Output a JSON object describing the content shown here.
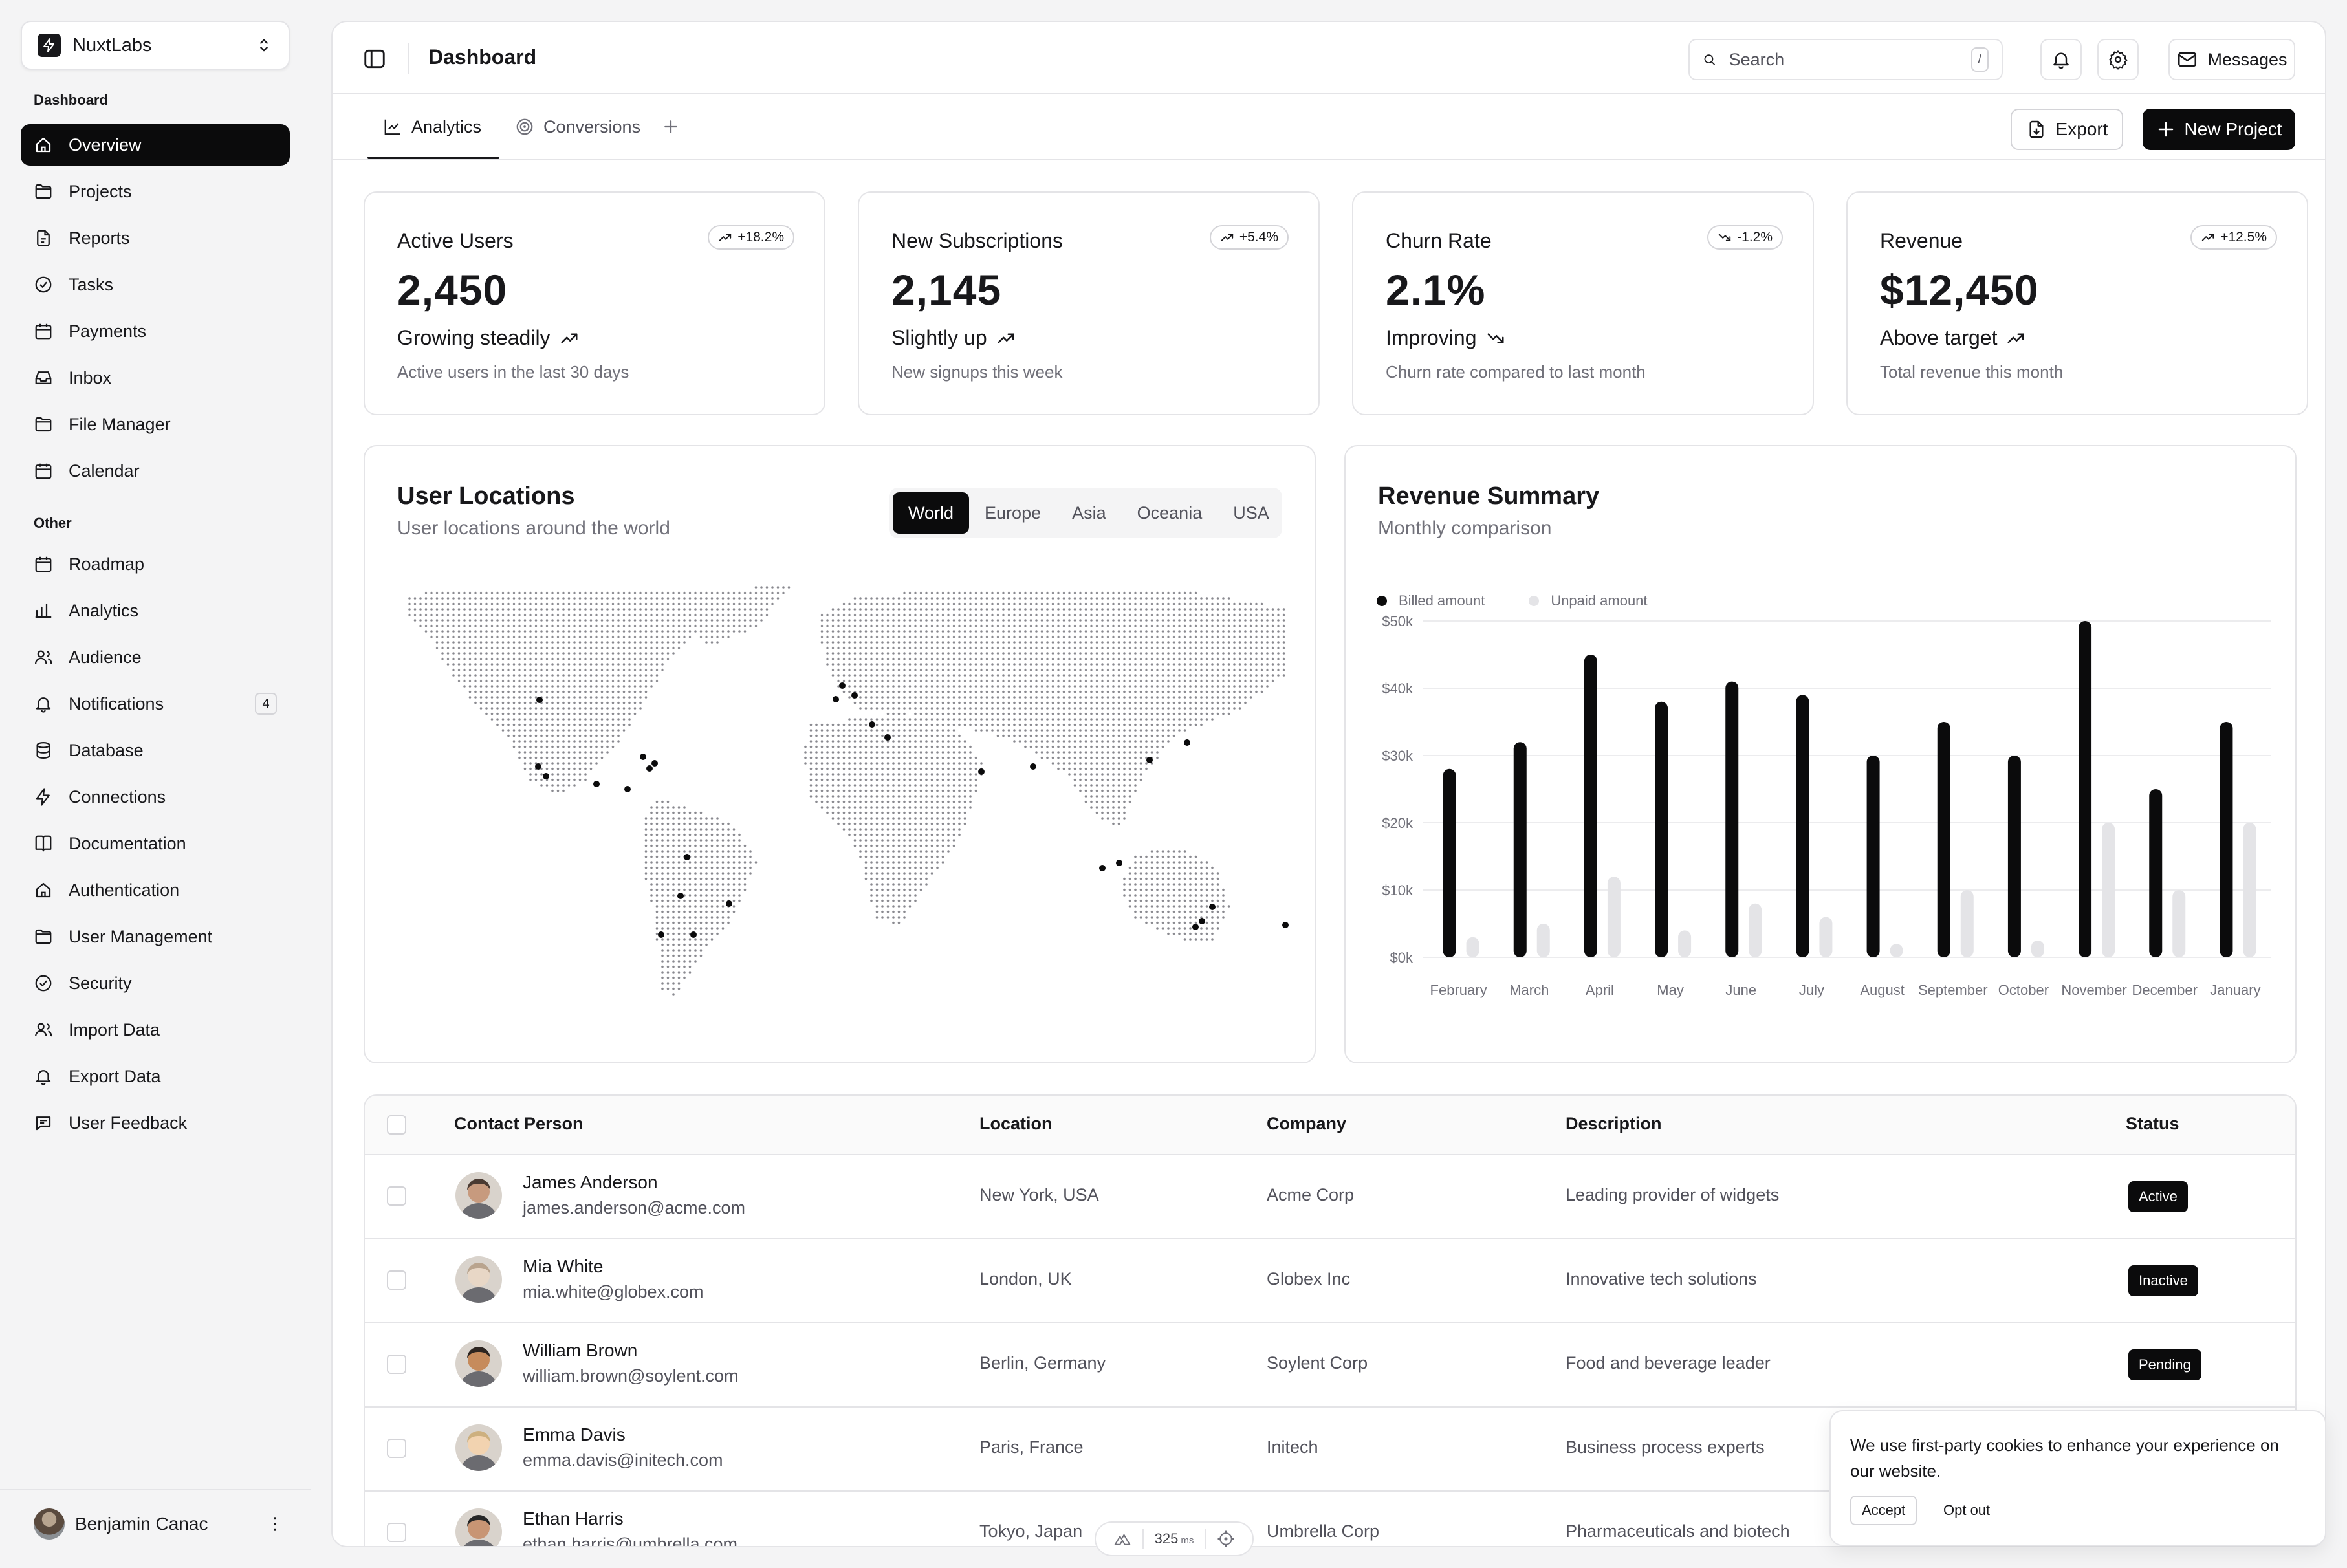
{
  "team": {
    "name": "NuxtLabs"
  },
  "nav": {
    "section_main": "Dashboard",
    "main_items": [
      {
        "label": "Overview",
        "icon": "home-icon",
        "active": true
      },
      {
        "label": "Projects",
        "icon": "folder-icon"
      },
      {
        "label": "Reports",
        "icon": "file-icon"
      },
      {
        "label": "Tasks",
        "icon": "check-circle-icon"
      },
      {
        "label": "Payments",
        "icon": "calendar-icon"
      },
      {
        "label": "Inbox",
        "icon": "inbox-icon"
      },
      {
        "label": "File Manager",
        "icon": "folder-icon"
      },
      {
        "label": "Calendar",
        "icon": "calendar-icon"
      }
    ],
    "section_other": "Other",
    "other_items": [
      {
        "label": "Roadmap",
        "icon": "calendar-icon"
      },
      {
        "label": "Analytics",
        "icon": "bar-chart-icon"
      },
      {
        "label": "Audience",
        "icon": "users-icon"
      },
      {
        "label": "Notifications",
        "icon": "bell-icon",
        "badge": "4"
      },
      {
        "label": "Database",
        "icon": "database-icon"
      },
      {
        "label": "Connections",
        "icon": "zap-icon"
      },
      {
        "label": "Documentation",
        "icon": "book-icon"
      },
      {
        "label": "Authentication",
        "icon": "home-icon"
      },
      {
        "label": "User Management",
        "icon": "folder-icon"
      },
      {
        "label": "Security",
        "icon": "check-circle-icon"
      },
      {
        "label": "Import Data",
        "icon": "users-icon"
      },
      {
        "label": "Export Data",
        "icon": "bell-icon"
      },
      {
        "label": "User Feedback",
        "icon": "message-icon"
      }
    ]
  },
  "user": {
    "name": "Benjamin Canac"
  },
  "header": {
    "title": "Dashboard",
    "search_placeholder": "Search",
    "search_shortcut": "/",
    "messages_label": "Messages"
  },
  "tabs": {
    "analytics": "Analytics",
    "conversions": "Conversions"
  },
  "actions": {
    "export": "Export",
    "new_project": "New Project"
  },
  "kpis": [
    {
      "title": "Active Users",
      "trend": "+18.2%",
      "trend_dir": "up",
      "value": "2,450",
      "status": "Growing steadily",
      "note": "Active users in the last 30 days"
    },
    {
      "title": "New Subscriptions",
      "trend": "+5.4%",
      "trend_dir": "up",
      "value": "2,145",
      "status": "Slightly up",
      "note": "New signups this week"
    },
    {
      "title": "Churn Rate",
      "trend": "-1.2%",
      "trend_dir": "down",
      "value": "2.1%",
      "status": "Improving",
      "note": "Churn rate compared to last month"
    },
    {
      "title": "Revenue",
      "trend": "+12.5%",
      "trend_dir": "up",
      "value": "$12,450",
      "status": "Above target",
      "note": "Total revenue this month"
    }
  ],
  "locations": {
    "title": "User Locations",
    "subtitle": "User locations around the world",
    "regions": [
      "World",
      "Europe",
      "Asia",
      "Oceania",
      "USA"
    ],
    "selected_region": "World"
  },
  "revenue": {
    "title": "Revenue Summary",
    "subtitle": "Monthly comparison"
  },
  "chart_data": {
    "type": "bar",
    "categories": [
      "February",
      "March",
      "April",
      "May",
      "June",
      "July",
      "August",
      "September",
      "October",
      "November",
      "December",
      "January"
    ],
    "series": [
      {
        "name": "Billed amount",
        "color": "#0b0b0c",
        "values": [
          28000,
          32000,
          45000,
          38000,
          41000,
          39000,
          30000,
          35000,
          30000,
          50000,
          25000,
          35000
        ]
      },
      {
        "name": "Unpaid amount",
        "color": "#e4e4e7",
        "values": [
          3000,
          5000,
          12000,
          4000,
          8000,
          6000,
          2000,
          10000,
          2500,
          20000,
          10000,
          20000
        ]
      }
    ],
    "ytick_labels": [
      "$0k",
      "$10k",
      "$20k",
      "$30k",
      "$40k",
      "$50k"
    ],
    "ylim": [
      0,
      50000
    ],
    "grid": true,
    "legend_position": "top-left"
  },
  "table": {
    "headers": {
      "contact": "Contact Person",
      "location": "Location",
      "company": "Company",
      "description": "Description",
      "status": "Status"
    },
    "rows": [
      {
        "name": "James Anderson",
        "email": "james.anderson@acme.com",
        "location": "New York, USA",
        "company": "Acme Corp",
        "description": "Leading provider of widgets",
        "status": "Active"
      },
      {
        "name": "Mia White",
        "email": "mia.white@globex.com",
        "location": "London, UK",
        "company": "Globex Inc",
        "description": "Innovative tech solutions",
        "status": "Inactive"
      },
      {
        "name": "William Brown",
        "email": "william.brown@soylent.com",
        "location": "Berlin, Germany",
        "company": "Soylent Corp",
        "description": "Food and beverage leader",
        "status": "Pending"
      },
      {
        "name": "Emma Davis",
        "email": "emma.davis@initech.com",
        "location": "Paris, France",
        "company": "Initech",
        "description": "Business process experts",
        "status": ""
      },
      {
        "name": "Ethan Harris",
        "email": "ethan.harris@umbrella.com",
        "location": "Tokyo, Japan",
        "company": "Umbrella Corp",
        "description": "Pharmaceuticals and biotech",
        "status": ""
      }
    ]
  },
  "perf": {
    "value": "325",
    "unit": "ms"
  },
  "cookie": {
    "text": "We use first-party cookies to enhance your experience on our website.",
    "accept": "Accept",
    "opt_out": "Opt out"
  }
}
